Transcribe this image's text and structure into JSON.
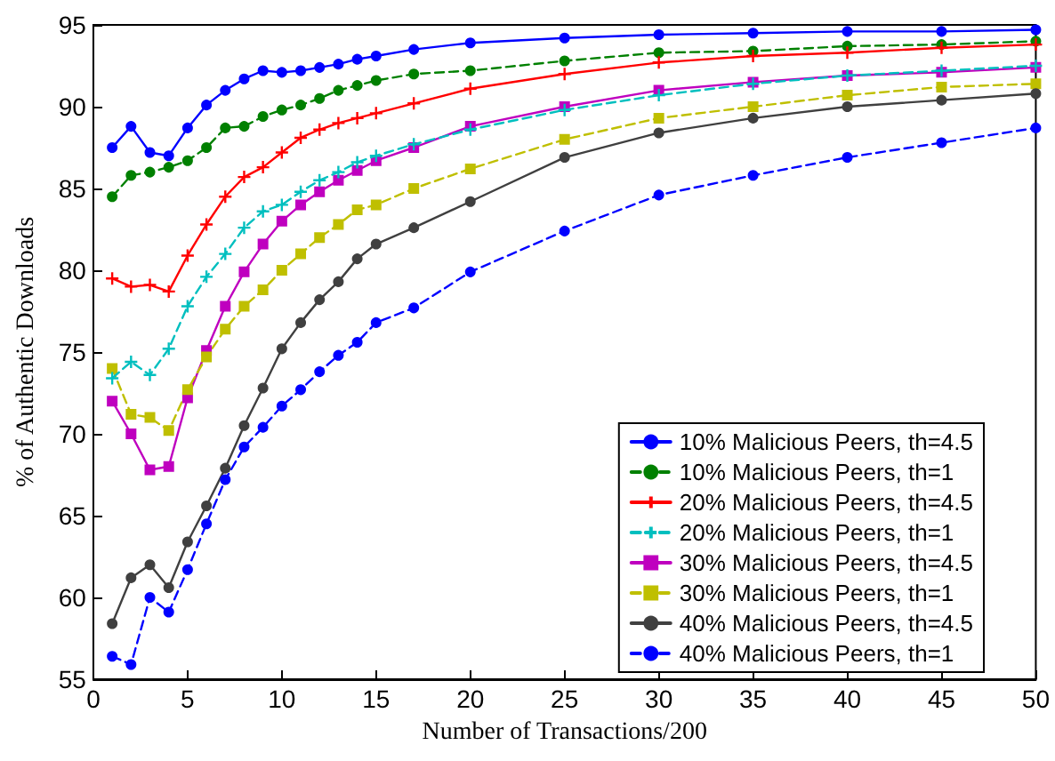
{
  "chart_data": {
    "type": "line",
    "xlabel": "Number of Transactions/200",
    "ylabel": "% of Authentic Downloads",
    "x": [
      1,
      2,
      3,
      4,
      5,
      6,
      7,
      8,
      9,
      10,
      11,
      12,
      13,
      14,
      15,
      17,
      20,
      25,
      30,
      35,
      40,
      45,
      50
    ],
    "xlim": [
      0,
      50
    ],
    "xticks": [
      0,
      5,
      10,
      15,
      20,
      25,
      30,
      35,
      40,
      45,
      50
    ],
    "ylim": [
      55,
      95
    ],
    "yticks": [
      55,
      60,
      65,
      70,
      75,
      80,
      85,
      90,
      95
    ],
    "grid": false,
    "legend": "bottom right",
    "series": [
      {
        "name": "10% Malicious Peers, th=4.5",
        "color": "#0000ff",
        "marker": "circle",
        "line_style": "solid",
        "values": [
          87.5,
          88.8,
          87.2,
          87.0,
          88.7,
          90.1,
          91.0,
          91.7,
          92.2,
          92.1,
          92.2,
          92.4,
          92.6,
          92.9,
          93.1,
          93.5,
          93.9,
          94.2,
          94.4,
          94.5,
          94.6,
          94.6,
          94.7
        ]
      },
      {
        "name": "10% Malicious Peers, th=1",
        "color": "#008000",
        "marker": "circle",
        "line_style": "dashed",
        "values": [
          84.5,
          85.8,
          86.0,
          86.3,
          86.7,
          87.5,
          88.7,
          88.8,
          89.4,
          89.8,
          90.1,
          90.5,
          91.0,
          91.3,
          91.6,
          92.0,
          92.2,
          92.8,
          93.3,
          93.4,
          93.7,
          93.8,
          94.0
        ]
      },
      {
        "name": "20% Malicious Peers, th=4.5",
        "color": "#ff0000",
        "marker": "cross",
        "line_style": "solid",
        "values": [
          79.5,
          79.0,
          79.1,
          78.7,
          80.9,
          82.8,
          84.5,
          85.7,
          86.3,
          87.2,
          88.1,
          88.6,
          89.0,
          89.3,
          89.6,
          90.2,
          91.1,
          92.0,
          92.7,
          93.1,
          93.3,
          93.6,
          93.8
        ]
      },
      {
        "name": "20% Malicious Peers, th=1",
        "color": "#00bfbf",
        "marker": "cross",
        "line_style": "dashed",
        "values": [
          73.4,
          74.4,
          73.6,
          75.2,
          77.8,
          79.6,
          81.0,
          82.6,
          83.6,
          84.0,
          84.8,
          85.5,
          86.0,
          86.6,
          87.0,
          87.7,
          88.6,
          89.8,
          90.7,
          91.4,
          91.9,
          92.2,
          92.5
        ]
      },
      {
        "name": "30% Malicious Peers, th=4.5",
        "color": "#bf00bf",
        "marker": "square",
        "line_style": "solid",
        "values": [
          72.0,
          70.0,
          67.8,
          68.0,
          72.2,
          75.1,
          77.8,
          79.9,
          81.6,
          83.0,
          84.0,
          84.8,
          85.5,
          86.1,
          86.7,
          87.5,
          88.8,
          90.0,
          91.0,
          91.5,
          91.9,
          92.1,
          92.4
        ]
      },
      {
        "name": "30% Malicious Peers, th=1",
        "color": "#bfbf00",
        "marker": "square",
        "line_style": "dashed",
        "values": [
          74.0,
          71.2,
          71.0,
          70.2,
          72.7,
          74.7,
          76.4,
          77.8,
          78.8,
          80.0,
          81.0,
          82.0,
          82.8,
          83.7,
          84.0,
          85.0,
          86.2,
          88.0,
          89.3,
          90.0,
          90.7,
          91.2,
          91.4
        ]
      },
      {
        "name": "40% Malicious Peers, th=4.5",
        "color": "#404040",
        "marker": "circle",
        "line_style": "solid",
        "values": [
          58.4,
          61.2,
          62.0,
          60.6,
          63.4,
          65.6,
          67.9,
          70.5,
          72.8,
          75.2,
          76.8,
          78.2,
          79.3,
          80.7,
          81.6,
          82.6,
          84.2,
          86.9,
          88.4,
          89.3,
          90.0,
          90.4,
          90.8
        ]
      },
      {
        "name": "40% Malicious Peers, th=1",
        "color": "#0000ff",
        "marker": "circle",
        "line_style": "dashed",
        "values": [
          56.4,
          55.9,
          60.0,
          59.1,
          61.7,
          64.5,
          67.2,
          69.2,
          70.4,
          71.7,
          72.7,
          73.8,
          74.8,
          75.6,
          76.8,
          77.7,
          79.9,
          82.4,
          84.6,
          85.8,
          86.9,
          87.8,
          88.7
        ]
      }
    ]
  }
}
